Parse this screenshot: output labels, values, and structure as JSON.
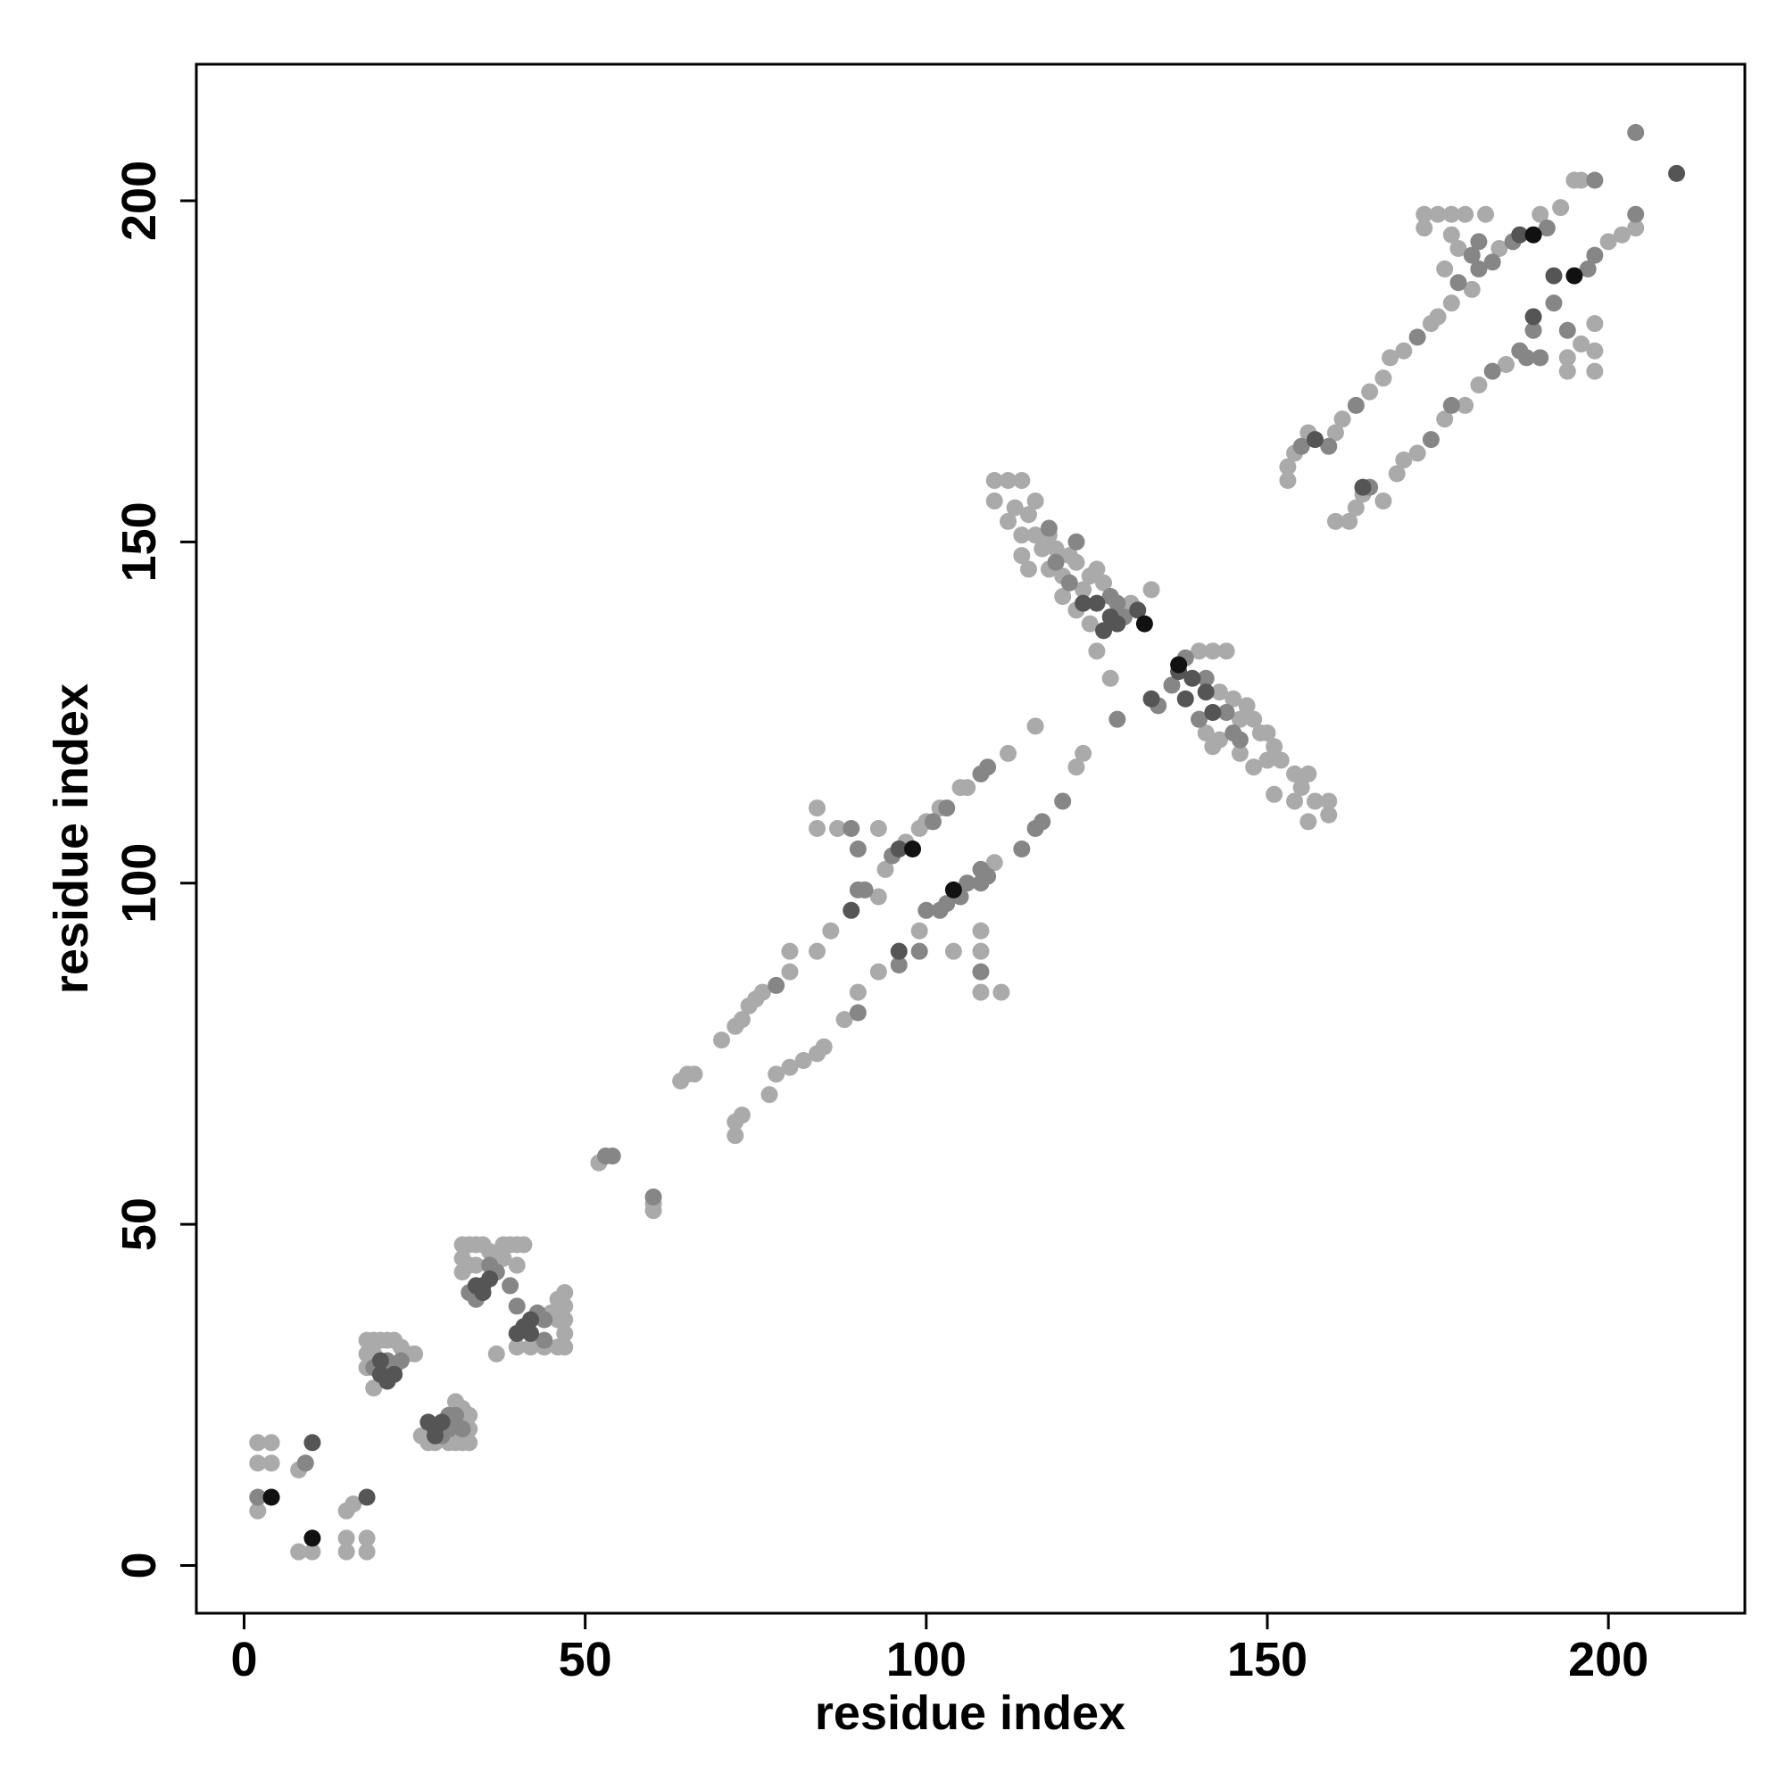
{
  "chart_data": {
    "type": "scatter",
    "xlabel": "residue index",
    "ylabel": "residue index",
    "xlim": [
      -7,
      220
    ],
    "ylim": [
      -7,
      220
    ],
    "xticks": [
      0,
      50,
      100,
      150,
      200
    ],
    "yticks": [
      0,
      50,
      100,
      150,
      200
    ],
    "series": [
      {
        "color": "#aaaaaa",
        "x": [
          2,
          4,
          2,
          4,
          2,
          8,
          8,
          15,
          16,
          15,
          15,
          18,
          18,
          10,
          18,
          19,
          20,
          21,
          22,
          18,
          19,
          23,
          24,
          25,
          18,
          21,
          19,
          26,
          27,
          28,
          30,
          31,
          32,
          33,
          33,
          33,
          32,
          31,
          32,
          33,
          34,
          35,
          36,
          38,
          39,
          40,
          41,
          32,
          32,
          33,
          34,
          38,
          40,
          37,
          40,
          42,
          44,
          46,
          47,
          47,
          47,
          47,
          47,
          46,
          45,
          46,
          52,
          60,
          60,
          65,
          66,
          64,
          70,
          72,
          73,
          74,
          75,
          76,
          80,
          80,
          84,
          86,
          93,
          94,
          97,
          99,
          100,
          102,
          105,
          106,
          84,
          84,
          87,
          93,
          72,
          72,
          73,
          77,
          78,
          80,
          82,
          84,
          85,
          88,
          90,
          93,
          99,
          108,
          108,
          108,
          111,
          104,
          110,
          112,
          116,
          122,
          123,
          110,
          112,
          114,
          110,
          113,
          115,
          116,
          112,
          114,
          116,
          118,
          117,
          119,
          121,
          114,
          115,
          118,
          120,
          122,
          124,
          123,
          125,
          126,
          120,
          122,
          124,
          130,
          133,
          125,
          127,
          140,
          142,
          144,
          143,
          145,
          146,
          147,
          148,
          149,
          150,
          151,
          150,
          152,
          154,
          155,
          156,
          157,
          159,
          159,
          156,
          154,
          151,
          148,
          146,
          142,
          141,
          143,
          153,
          153,
          154,
          156,
          160,
          161,
          165,
          167,
          168,
          170,
          174,
          175,
          177,
          180,
          184,
          190,
          193,
          195,
          196,
          173,
          175,
          177,
          179,
          182,
          173,
          177,
          178,
          176,
          160,
          162,
          163,
          164,
          167,
          169,
          170,
          172,
          176,
          179,
          181,
          185,
          194,
          194,
          196,
          198,
          198,
          198,
          200,
          202,
          204
        ],
        "values": [
          18,
          18,
          15,
          15,
          8,
          2,
          14,
          8,
          9,
          2,
          4,
          2,
          4,
          2,
          33,
          33,
          33,
          33,
          33,
          31,
          31,
          32,
          31,
          31,
          29,
          29,
          26,
          19,
          18,
          18,
          18,
          18,
          18,
          18,
          20,
          22,
          23,
          24,
          47,
          47,
          47,
          47,
          46,
          47,
          47,
          47,
          47,
          45,
          43,
          44,
          44,
          45,
          44,
          31,
          32,
          32,
          32,
          32,
          32,
          34,
          36,
          38,
          40,
          39,
          37,
          36,
          59,
          52,
          53,
          72,
          72,
          71,
          77,
          79,
          80,
          82,
          83,
          84,
          87,
          90,
          90,
          93,
          98,
          102,
          106,
          108,
          109,
          111,
          114,
          114,
          111,
          108,
          108,
          108,
          65,
          63,
          66,
          69,
          72,
          73,
          74,
          75,
          76,
          80,
          84,
          87,
          93,
          93,
          90,
          84,
          84,
          90,
          103,
          119,
          123,
          117,
          119,
          159,
          159,
          159,
          156,
          155,
          154,
          156,
          153,
          151,
          151,
          151,
          149,
          149,
          148,
          148,
          146,
          146,
          145,
          147,
          145,
          143,
          146,
          144,
          142,
          140,
          138,
          141,
          143,
          134,
          130,
          134,
          134,
          134,
          128,
          127,
          124,
          126,
          124,
          122,
          122,
          120,
          118,
          118,
          116,
          114,
          116,
          112,
          112,
          110,
          109,
          112,
          113,
          117,
          119,
          120,
          122,
          121,
          161,
          159,
          163,
          166,
          166,
          168,
          172,
          174,
          177,
          178,
          182,
          183,
          185,
          187,
          193,
          198,
          199,
          203,
          203,
          198,
          198,
          198,
          198,
          198,
          196,
          195,
          193,
          190,
          153,
          153,
          155,
          157,
          156,
          160,
          162,
          163,
          168,
          170,
          173,
          176,
          175,
          177,
          179,
          178,
          175,
          182,
          194,
          195,
          196
        ]
      },
      {
        "color": "#868686",
        "x": [
          2,
          9,
          19,
          21,
          22,
          23,
          29,
          30,
          31,
          30,
          32,
          33,
          34,
          36,
          37,
          39,
          40,
          43,
          44,
          44,
          53,
          54,
          60,
          78,
          90,
          91,
          95,
          101,
          103,
          108,
          109,
          89,
          90,
          90,
          96,
          99,
          100,
          102,
          103,
          105,
          106,
          108,
          108,
          109,
          114,
          116,
          117,
          120,
          108,
          128,
          119,
          121,
          118,
          122,
          127,
          128,
          129,
          138,
          141,
          145,
          140,
          136,
          144,
          146,
          134,
          155,
          159,
          163,
          172,
          178,
          181,
          183,
          186,
          191,
          198,
          204,
          180,
          181,
          165,
          174,
          177,
          183,
          187,
          189,
          192,
          197,
          198,
          204,
          190,
          188,
          194
        ],
        "values": [
          10,
          15,
          29,
          30,
          29,
          30,
          19,
          20,
          22,
          22,
          20,
          40,
          39,
          44,
          43,
          41,
          38,
          37,
          36,
          33,
          60,
          60,
          54,
          85,
          99,
          99,
          104,
          109,
          111,
          116,
          117,
          108,
          105,
          81,
          88,
          90,
          96,
          96,
          97,
          98,
          100,
          100,
          102,
          101,
          105,
          108,
          109,
          112,
          87,
          124,
          147,
          144,
          152,
          150,
          142,
          141,
          139,
          133,
          130,
          122,
          124,
          129,
          125,
          121,
          126,
          164,
          164,
          170,
          180,
          188,
          190,
          191,
          194,
          196,
          203,
          210,
          192,
          194,
          158,
          165,
          170,
          175,
          178,
          181,
          185,
          190,
          192,
          198,
          177,
          177,
          181
        ]
      },
      {
        "color": "#555555",
        "x": [
          10,
          18,
          20,
          21,
          22,
          20,
          28,
          27,
          29,
          28,
          34,
          35,
          36,
          35,
          41,
          42,
          40,
          42,
          89,
          96,
          96,
          123,
          125,
          127,
          128,
          131,
          126,
          137,
          139,
          141,
          138,
          142,
          133,
          157,
          187,
          210,
          164,
          189,
          192
        ],
        "values": [
          18,
          10,
          28,
          27,
          28,
          30,
          20,
          21,
          21,
          19,
          41,
          41,
          42,
          40,
          35,
          36,
          34,
          34,
          96,
          105,
          90,
          141,
          141,
          139,
          138,
          140,
          137,
          131,
          130,
          128,
          127,
          125,
          127,
          165,
          195,
          204,
          158,
          183,
          189
        ]
      },
      {
        "color": "#111111",
        "x": [
          4,
          10,
          98,
          104,
          132,
          137,
          189,
          195
        ],
        "values": [
          10,
          4,
          105,
          99,
          138,
          132,
          195,
          189
        ]
      }
    ]
  }
}
